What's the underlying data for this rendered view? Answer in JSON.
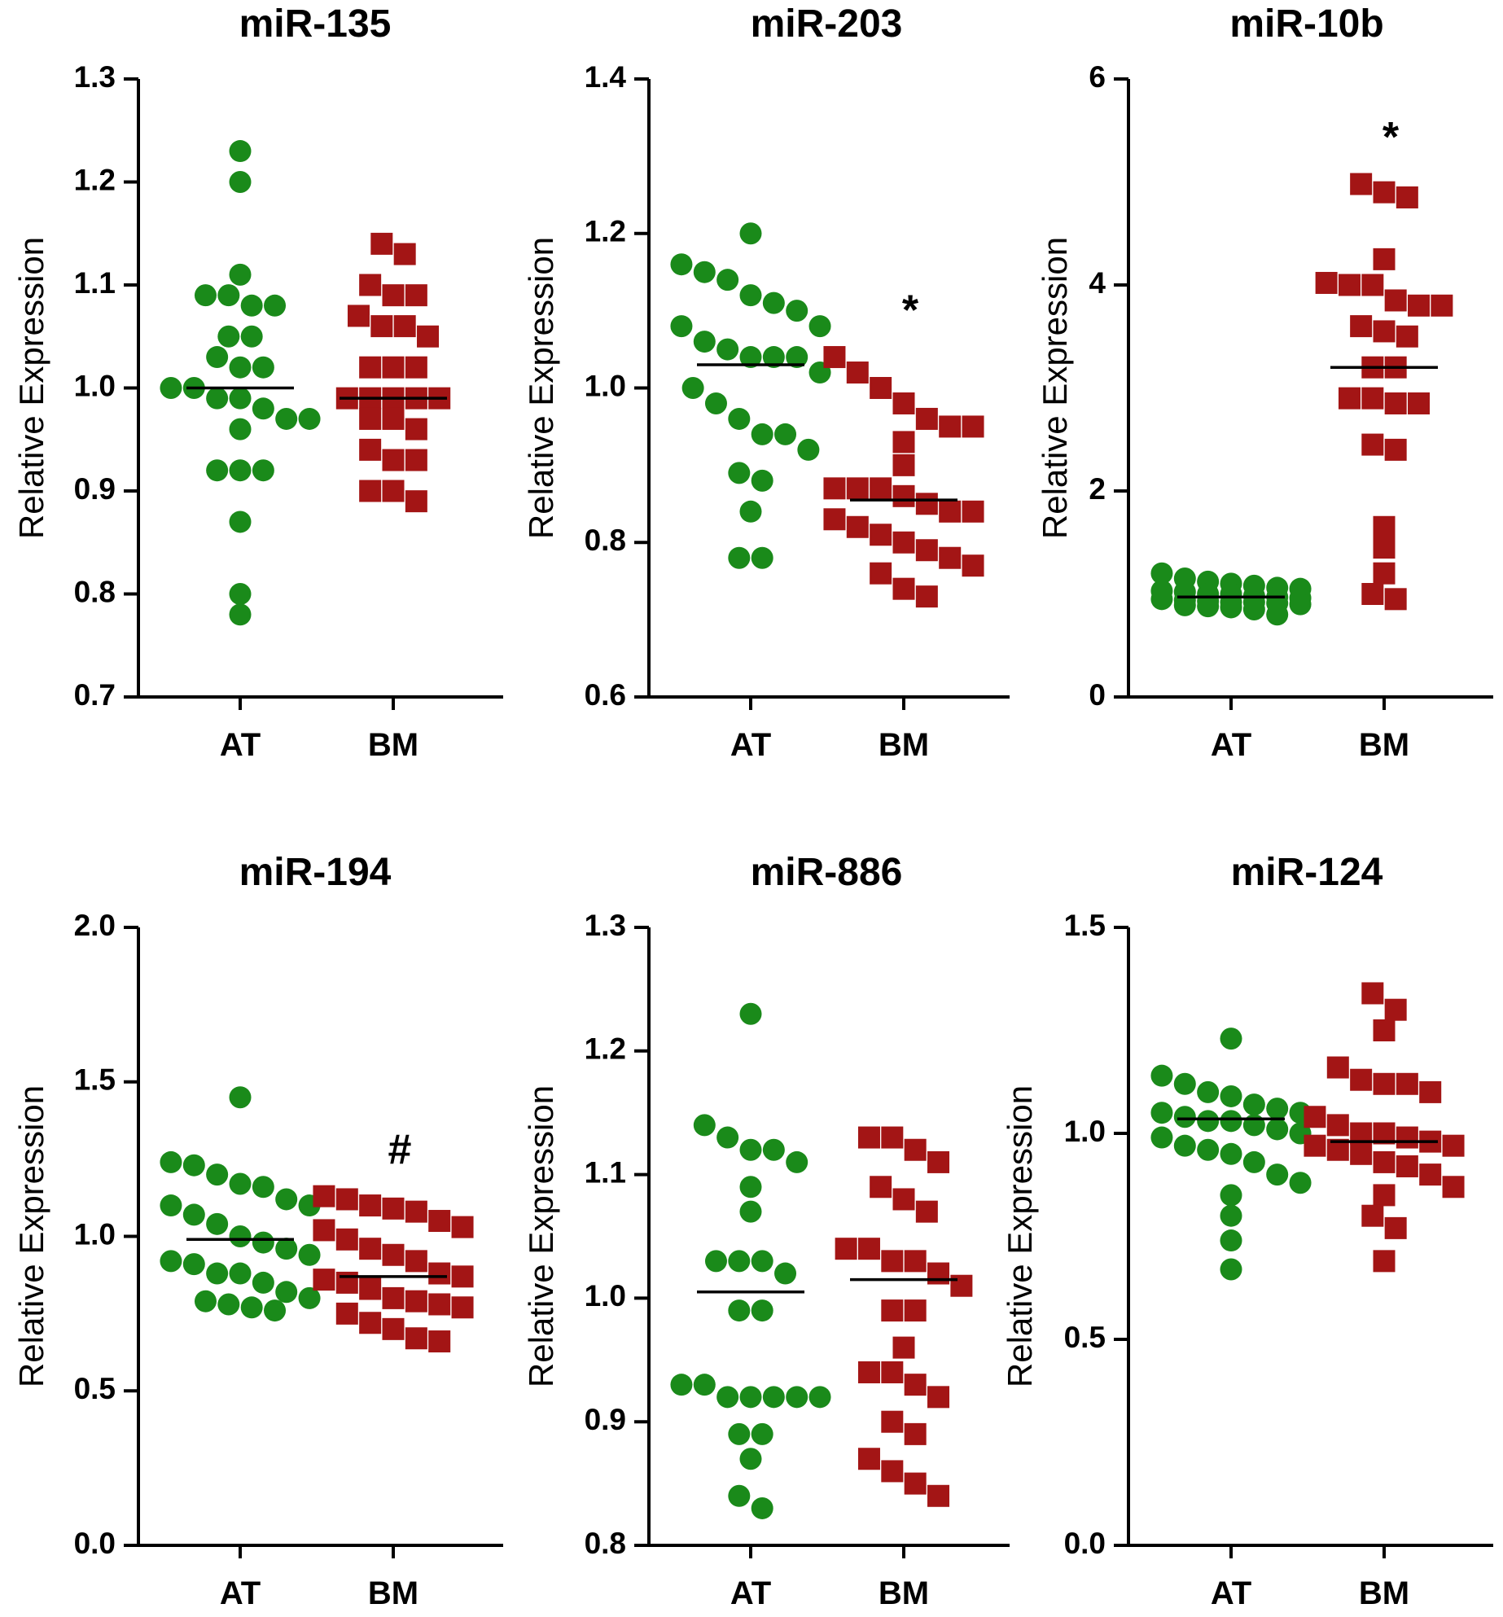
{
  "chart_data": [
    {
      "type": "scatter",
      "title": "miR-135",
      "ylabel": "Relative Expression",
      "categories": [
        "AT",
        "BM"
      ],
      "ylim": [
        0.7,
        1.3
      ],
      "yticks": [
        0.7,
        0.8,
        0.9,
        1.0,
        1.1,
        1.2,
        1.3
      ],
      "tick_labels": [
        "0.7",
        "0.8",
        "0.9",
        "1.0",
        "1.1",
        "1.2",
        "1.3"
      ],
      "annotation": "",
      "colors": {
        "AT": "#1a8a1a",
        "BM": "#a31515"
      },
      "series": [
        {
          "name": "AT",
          "marker": "circle",
          "mean": 1.0,
          "values": [
            1.23,
            1.2,
            1.11,
            1.09,
            1.09,
            1.08,
            1.08,
            1.05,
            1.05,
            1.03,
            1.02,
            1.02,
            1.0,
            1.0,
            0.99,
            0.99,
            0.98,
            0.97,
            0.97,
            0.96,
            0.92,
            0.92,
            0.92,
            0.87,
            0.8,
            0.78
          ]
        },
        {
          "name": "BM",
          "marker": "square",
          "mean": 0.99,
          "values": [
            1.14,
            1.13,
            1.1,
            1.09,
            1.09,
            1.07,
            1.06,
            1.06,
            1.05,
            1.02,
            1.02,
            1.02,
            0.99,
            0.99,
            0.99,
            0.99,
            0.99,
            0.97,
            0.97,
            0.96,
            0.94,
            0.93,
            0.93,
            0.9,
            0.9,
            0.89
          ]
        }
      ]
    },
    {
      "type": "scatter",
      "title": "miR-203",
      "ylabel": "Relative Expression",
      "categories": [
        "AT",
        "BM"
      ],
      "ylim": [
        0.6,
        1.4
      ],
      "yticks": [
        0.6,
        0.8,
        1.0,
        1.2,
        1.4
      ],
      "tick_labels": [
        "0.6",
        "0.8",
        "1.0",
        "1.2",
        "1.4"
      ],
      "annotation": "*",
      "colors": {
        "AT": "#1a8a1a",
        "BM": "#a31515"
      },
      "series": [
        {
          "name": "AT",
          "marker": "circle",
          "mean": 1.03,
          "values": [
            1.2,
            1.16,
            1.15,
            1.14,
            1.12,
            1.11,
            1.1,
            1.08,
            1.08,
            1.06,
            1.05,
            1.04,
            1.04,
            1.04,
            1.02,
            1.0,
            0.98,
            0.96,
            0.94,
            0.94,
            0.92,
            0.89,
            0.88,
            0.84,
            0.78,
            0.78
          ]
        },
        {
          "name": "BM",
          "marker": "square",
          "mean": 0.855,
          "values": [
            1.04,
            1.02,
            1.0,
            0.98,
            0.96,
            0.95,
            0.95,
            0.93,
            0.9,
            0.87,
            0.87,
            0.87,
            0.86,
            0.85,
            0.84,
            0.84,
            0.83,
            0.82,
            0.81,
            0.8,
            0.79,
            0.78,
            0.77,
            0.76,
            0.74,
            0.73
          ]
        }
      ]
    },
    {
      "type": "scatter",
      "title": "miR-10b",
      "ylabel": "Relative Expression",
      "categories": [
        "AT",
        "BM"
      ],
      "ylim": [
        0,
        6
      ],
      "yticks": [
        0,
        2,
        4,
        6
      ],
      "tick_labels": [
        "0",
        "2",
        "4",
        "6"
      ],
      "annotation": "*",
      "colors": {
        "AT": "#1a8a1a",
        "BM": "#a31515"
      },
      "series": [
        {
          "name": "AT",
          "marker": "circle",
          "mean": 0.97,
          "values": [
            1.2,
            1.15,
            1.12,
            1.1,
            1.08,
            1.06,
            1.05,
            1.03,
            1.02,
            1.0,
            1.0,
            0.98,
            0.97,
            0.96,
            0.95,
            0.94,
            0.93,
            0.92,
            0.92,
            0.91,
            0.9,
            0.89,
            0.88,
            0.87,
            0.85,
            0.8
          ]
        },
        {
          "name": "BM",
          "marker": "square",
          "mean": 3.2,
          "values": [
            4.98,
            4.9,
            4.85,
            4.25,
            4.02,
            4.0,
            4.0,
            3.85,
            3.8,
            3.8,
            3.6,
            3.55,
            3.5,
            3.2,
            3.2,
            2.9,
            2.9,
            2.85,
            2.85,
            2.45,
            2.4,
            1.65,
            1.45,
            1.2,
            1.0,
            0.95
          ]
        }
      ]
    },
    {
      "type": "scatter",
      "title": "miR-194",
      "ylabel": "Relative Expression",
      "categories": [
        "AT",
        "BM"
      ],
      "ylim": [
        0.0,
        2.0
      ],
      "yticks": [
        0.0,
        0.5,
        1.0,
        1.5,
        2.0
      ],
      "tick_labels": [
        "0.0",
        "0.5",
        "1.0",
        "1.5",
        "2.0"
      ],
      "annotation": "#",
      "colors": {
        "AT": "#1a8a1a",
        "BM": "#a31515"
      },
      "series": [
        {
          "name": "AT",
          "marker": "circle",
          "mean": 0.99,
          "values": [
            1.45,
            1.24,
            1.23,
            1.2,
            1.17,
            1.16,
            1.12,
            1.1,
            1.1,
            1.07,
            1.04,
            1.0,
            0.98,
            0.96,
            0.94,
            0.92,
            0.91,
            0.88,
            0.88,
            0.85,
            0.82,
            0.8,
            0.79,
            0.78,
            0.77,
            0.76
          ]
        },
        {
          "name": "BM",
          "marker": "square",
          "mean": 0.87,
          "values": [
            1.13,
            1.12,
            1.1,
            1.09,
            1.08,
            1.05,
            1.03,
            1.02,
            0.99,
            0.96,
            0.94,
            0.92,
            0.88,
            0.87,
            0.86,
            0.85,
            0.83,
            0.8,
            0.79,
            0.78,
            0.77,
            0.75,
            0.72,
            0.7,
            0.67,
            0.66
          ]
        }
      ]
    },
    {
      "type": "scatter",
      "title": "miR-886",
      "ylabel": "Relative Expression",
      "categories": [
        "AT",
        "BM"
      ],
      "ylim": [
        0.8,
        1.3
      ],
      "yticks": [
        0.8,
        0.9,
        1.0,
        1.1,
        1.2,
        1.3
      ],
      "tick_labels": [
        "0.8",
        "0.9",
        "1.0",
        "1.1",
        "1.2",
        "1.3"
      ],
      "annotation": "",
      "colors": {
        "AT": "#1a8a1a",
        "BM": "#a31515"
      },
      "series": [
        {
          "name": "AT",
          "marker": "circle",
          "mean": 1.005,
          "values": [
            1.23,
            1.14,
            1.13,
            1.12,
            1.12,
            1.11,
            1.09,
            1.07,
            1.03,
            1.03,
            1.03,
            1.02,
            0.99,
            0.99,
            0.93,
            0.93,
            0.92,
            0.92,
            0.92,
            0.92,
            0.92,
            0.89,
            0.89,
            0.87,
            0.84,
            0.83
          ]
        },
        {
          "name": "BM",
          "marker": "square",
          "mean": 1.015,
          "values": [
            1.13,
            1.13,
            1.12,
            1.11,
            1.09,
            1.08,
            1.07,
            1.04,
            1.04,
            1.03,
            1.03,
            1.02,
            1.01,
            0.99,
            0.99,
            0.96,
            0.94,
            0.94,
            0.93,
            0.92,
            0.9,
            0.89,
            0.87,
            0.86,
            0.85,
            0.84
          ]
        }
      ]
    },
    {
      "type": "scatter",
      "title": "miR-124",
      "ylabel": "Relative Expression",
      "categories": [
        "AT",
        "BM"
      ],
      "ylim": [
        0.0,
        1.5
      ],
      "yticks": [
        0.0,
        0.5,
        1.0,
        1.5
      ],
      "tick_labels": [
        "0.0",
        "0.5",
        "1.0",
        "1.5"
      ],
      "annotation": "",
      "colors": {
        "AT": "#1a8a1a",
        "BM": "#a31515"
      },
      "series": [
        {
          "name": "AT",
          "marker": "circle",
          "mean": 1.035,
          "values": [
            1.23,
            1.14,
            1.12,
            1.1,
            1.09,
            1.07,
            1.06,
            1.05,
            1.05,
            1.04,
            1.03,
            1.02,
            1.01,
            1.0,
            0.99,
            0.97,
            0.96,
            0.95,
            0.93,
            0.9,
            0.88,
            0.85,
            0.8,
            0.74,
            0.67,
            1.03
          ]
        },
        {
          "name": "BM",
          "marker": "square",
          "mean": 0.98,
          "values": [
            1.34,
            1.3,
            1.25,
            1.16,
            1.13,
            1.12,
            1.12,
            1.1,
            1.04,
            1.02,
            1.0,
            1.0,
            0.99,
            0.98,
            0.97,
            0.97,
            0.96,
            0.95,
            0.93,
            0.92,
            0.9,
            0.87,
            0.85,
            0.8,
            0.77,
            0.69
          ]
        }
      ]
    }
  ]
}
